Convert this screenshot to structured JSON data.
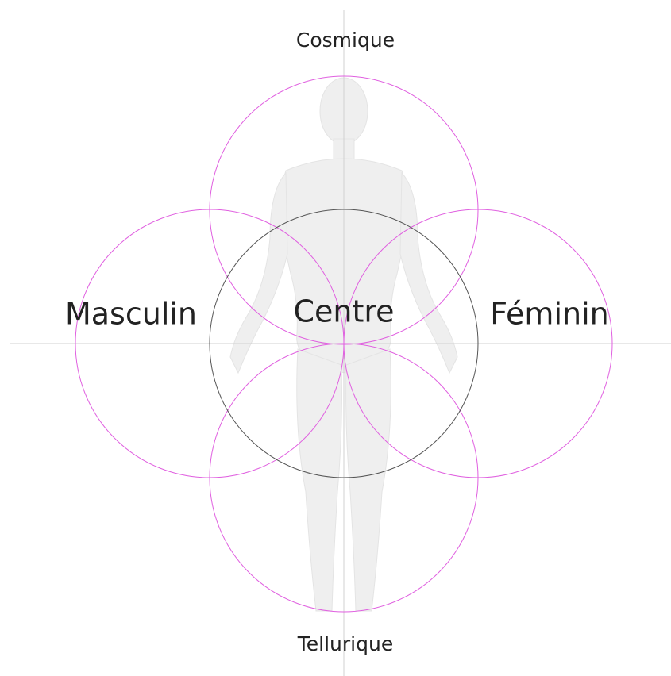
{
  "labels": {
    "top": "Cosmique",
    "left": "Masculin",
    "center": "Centre",
    "right": "Féminin",
    "bottom": "Tellurique"
  }
}
